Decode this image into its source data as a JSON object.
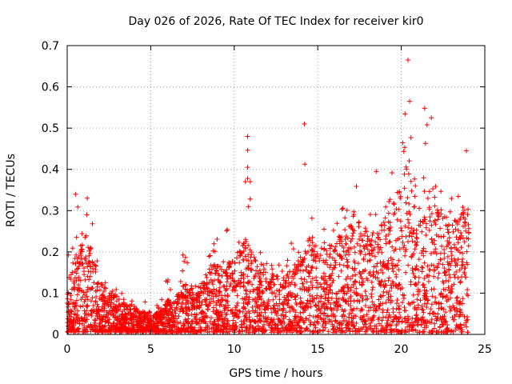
{
  "chart_data": {
    "type": "scatter",
    "title": "Day 026 of 2026, Rate Of TEC Index for receiver kir0",
    "xlabel": "GPS time / hours",
    "ylabel": "ROTI / TECUs",
    "xlim": [
      0,
      25
    ],
    "ylim": [
      0,
      0.7
    ],
    "x_ticks": [
      0,
      5,
      10,
      15,
      20,
      25
    ],
    "y_ticks": [
      0,
      0.1,
      0.2,
      0.3,
      0.4,
      0.5,
      0.6,
      0.7
    ],
    "x_tick_labels": [
      "0",
      "5",
      "10",
      "15",
      "20",
      "25"
    ],
    "y_tick_labels": [
      "0",
      "0.1",
      "0.2",
      "0.3",
      "0.4",
      "0.5",
      "0.6",
      "0.7"
    ],
    "grid": true,
    "marker": "+",
    "marker_color": "#ff0000",
    "series": [
      {
        "name": "ROTI",
        "note": "dense scatter; envelope sampled as (hour, typical_max, peak)",
        "envelope": [
          [
            0.0,
            0.12,
            0.16
          ],
          [
            0.3,
            0.17,
            0.34
          ],
          [
            0.6,
            0.2,
            0.34
          ],
          [
            1.0,
            0.22,
            0.33
          ],
          [
            1.4,
            0.21,
            0.3
          ],
          [
            1.7,
            0.17,
            0.21
          ],
          [
            2.0,
            0.12,
            0.16
          ],
          [
            2.5,
            0.1,
            0.12
          ],
          [
            3.0,
            0.09,
            0.11
          ],
          [
            3.5,
            0.07,
            0.09
          ],
          [
            4.0,
            0.06,
            0.08
          ],
          [
            4.5,
            0.05,
            0.1
          ],
          [
            5.0,
            0.05,
            0.08
          ],
          [
            5.5,
            0.05,
            0.07
          ],
          [
            6.0,
            0.08,
            0.15
          ],
          [
            6.5,
            0.07,
            0.1
          ],
          [
            7.0,
            0.12,
            0.21
          ],
          [
            7.5,
            0.11,
            0.15
          ],
          [
            8.0,
            0.12,
            0.2
          ],
          [
            8.5,
            0.17,
            0.27
          ],
          [
            9.0,
            0.16,
            0.25
          ],
          [
            9.5,
            0.18,
            0.3
          ],
          [
            10.0,
            0.17,
            0.22
          ],
          [
            10.5,
            0.21,
            0.31
          ],
          [
            10.8,
            0.26,
            0.48
          ],
          [
            11.2,
            0.19,
            0.26
          ],
          [
            11.5,
            0.15,
            0.2
          ],
          [
            12.0,
            0.17,
            0.2
          ],
          [
            12.5,
            0.14,
            0.18
          ],
          [
            13.0,
            0.13,
            0.16
          ],
          [
            13.5,
            0.16,
            0.24
          ],
          [
            14.0,
            0.19,
            0.26
          ],
          [
            14.2,
            0.2,
            0.51
          ],
          [
            14.5,
            0.23,
            0.28
          ],
          [
            15.0,
            0.22,
            0.3
          ],
          [
            15.5,
            0.2,
            0.27
          ],
          [
            16.0,
            0.23,
            0.28
          ],
          [
            16.5,
            0.25,
            0.33
          ],
          [
            17.0,
            0.27,
            0.35
          ],
          [
            17.3,
            0.3,
            0.38
          ],
          [
            17.6,
            0.24,
            0.3
          ],
          [
            18.0,
            0.26,
            0.33
          ],
          [
            18.5,
            0.25,
            0.3
          ],
          [
            19.0,
            0.27,
            0.34
          ],
          [
            19.5,
            0.28,
            0.4
          ],
          [
            20.0,
            0.36,
            0.45
          ],
          [
            20.2,
            0.42,
            0.55
          ],
          [
            20.4,
            0.45,
            0.67
          ],
          [
            20.7,
            0.35,
            0.42
          ],
          [
            21.0,
            0.3,
            0.36
          ],
          [
            21.3,
            0.34,
            0.55
          ],
          [
            21.7,
            0.35,
            0.53
          ],
          [
            22.0,
            0.3,
            0.36
          ],
          [
            22.5,
            0.3,
            0.37
          ],
          [
            23.0,
            0.27,
            0.34
          ],
          [
            23.5,
            0.28,
            0.38
          ],
          [
            23.8,
            0.34,
            0.45
          ],
          [
            24.0,
            0.3,
            0.44
          ]
        ],
        "notable_points": [
          {
            "x": 20.4,
            "y": 0.665
          },
          {
            "x": 20.5,
            "y": 0.565
          },
          {
            "x": 21.4,
            "y": 0.548
          },
          {
            "x": 21.8,
            "y": 0.525
          },
          {
            "x": 14.2,
            "y": 0.51
          },
          {
            "x": 10.8,
            "y": 0.48
          },
          {
            "x": 23.9,
            "y": 0.445
          },
          {
            "x": 10.8,
            "y": 0.405
          },
          {
            "x": 18.5,
            "y": 0.395
          },
          {
            "x": 0.5,
            "y": 0.34
          },
          {
            "x": 1.2,
            "y": 0.33
          }
        ]
      }
    ]
  }
}
